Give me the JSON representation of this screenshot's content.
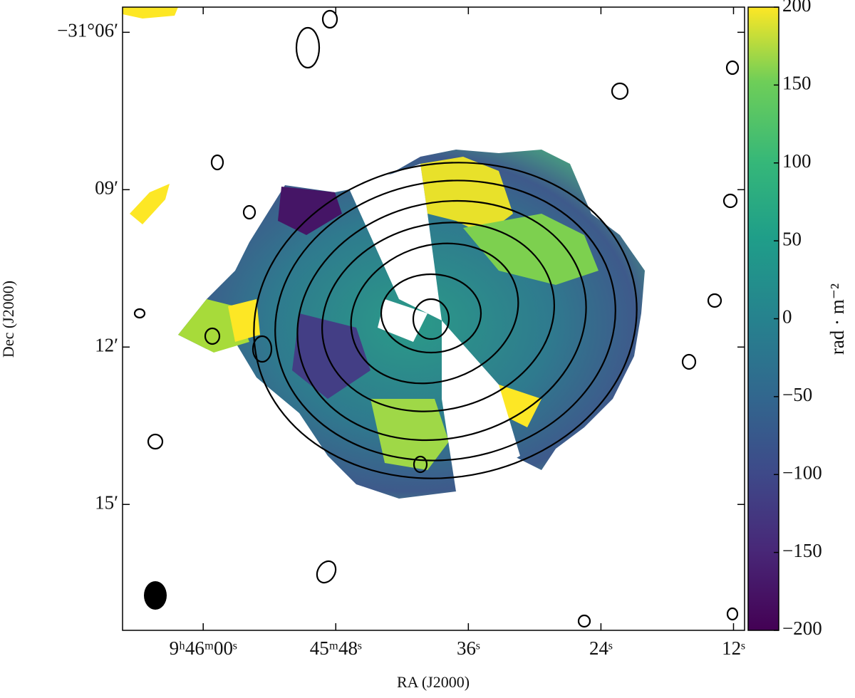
{
  "chart_data": {
    "type": "image",
    "xlabel": "RA (J2000)",
    "ylabel": "Dec (J2000)",
    "xlim": [
      35167.3,
      35111.0
    ],
    "xticks": [
      {
        "value": 35160,
        "label": "9ʰ46ᵐ00ˢ"
      },
      {
        "value": 35148,
        "label": "45ᵐ48ˢ"
      },
      {
        "value": 35136,
        "label": "36ˢ"
      },
      {
        "value": 35124,
        "label": "24ˢ"
      },
      {
        "value": 35112,
        "label": "12ˢ"
      }
    ],
    "ylim": [
      -31.29,
      -31.092
    ],
    "yticks": [
      {
        "value": -31.1,
        "label": "−31°06′"
      },
      {
        "value": -31.15,
        "label": "09′"
      },
      {
        "value": -31.2,
        "label": "12′"
      },
      {
        "value": -31.25,
        "label": "15′"
      }
    ],
    "colorbar": {
      "label": "rad · m⁻²",
      "lim": [
        -200,
        200
      ],
      "ticks": [
        200,
        150,
        100,
        50,
        0,
        {
          "value": -50,
          "label": "−50"
        },
        {
          "value": -100,
          "label": "−100"
        },
        {
          "value": -150,
          "label": "−150"
        },
        {
          "value": -200,
          "label": "−200"
        }
      ]
    }
  }
}
